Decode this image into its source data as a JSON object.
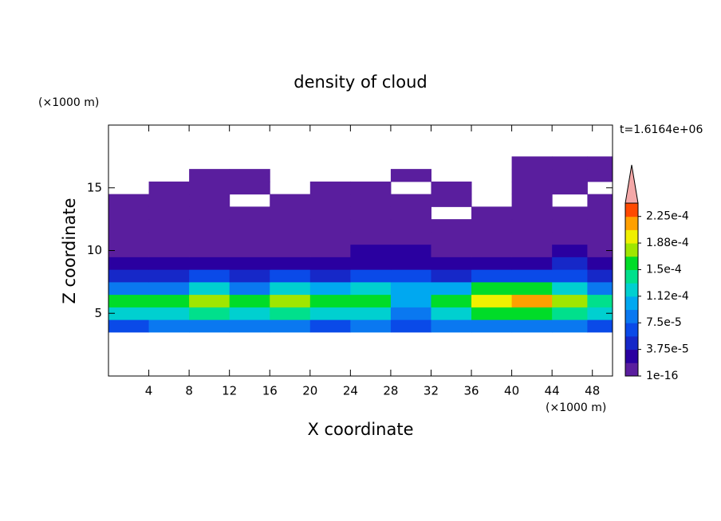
{
  "chart_data": {
    "type": "contour",
    "title": "density of cloud",
    "x_label": "X coordinate",
    "y_label": "Z coordinate",
    "x_unit": "(×1000 m)",
    "y_unit": "(×1000 m)",
    "annotation": "t=1.6164e+06",
    "xlim": [
      0,
      50
    ],
    "ylim": [
      0,
      20
    ],
    "xticks": [
      4,
      8,
      12,
      16,
      20,
      24,
      28,
      32,
      36,
      40,
      44,
      48
    ],
    "yticks": [
      5,
      10,
      15
    ],
    "x": [
      2,
      6,
      10,
      14,
      18,
      22,
      26,
      30,
      34,
      38,
      42,
      46,
      49
    ],
    "z": [
      4,
      5,
      6,
      7,
      8,
      9,
      10,
      11,
      12,
      13,
      14,
      15,
      16,
      17
    ],
    "values": [
      [
        7e-05,
        8e-05,
        8e-05,
        8e-05,
        8e-05,
        7e-05,
        8e-05,
        6e-05,
        8e-05,
        8e-05,
        8e-05,
        8e-05,
        7e-05
      ],
      [
        0.00012,
        0.00013,
        0.00014,
        0.00013,
        0.00014,
        0.00013,
        0.00012,
        9e-05,
        0.00013,
        0.00015,
        0.00016,
        0.00014,
        0.00012
      ],
      [
        0.00015,
        0.00016,
        0.00017,
        0.00016,
        0.00017,
        0.00015,
        0.00015,
        0.00011,
        0.00016,
        0.00019,
        0.00022,
        0.00017,
        0.00014
      ],
      [
        8e-05,
        9e-05,
        0.00013,
        9e-05,
        0.00012,
        0.0001,
        0.00012,
        0.0001,
        0.00011,
        0.00015,
        0.00016,
        0.00012,
        8e-05
      ],
      [
        5e-05,
        5e-05,
        6e-05,
        5e-05,
        6e-05,
        5e-05,
        6e-05,
        6e-05,
        5e-05,
        6e-05,
        6e-05,
        6e-05,
        5e-05
      ],
      [
        3e-05,
        3e-05,
        3e-05,
        2.5e-05,
        3e-05,
        3e-05,
        3.5e-05,
        3e-05,
        2.5e-05,
        3e-05,
        3e-05,
        4e-05,
        3e-05
      ],
      [
        1.5e-05,
        1.2e-05,
        1.5e-05,
        1.2e-05,
        1.5e-05,
        1.2e-05,
        2e-05,
        2e-05,
        1.5e-05,
        1.5e-05,
        1.5e-05,
        2e-05,
        1.5e-05
      ],
      [
        1e-05,
        1e-05,
        1e-05,
        1e-05,
        1e-05,
        1e-05,
        1e-05,
        1e-05,
        1e-05,
        1e-05,
        1e-05,
        1e-05,
        1e-05
      ],
      [
        1e-05,
        1e-05,
        1e-05,
        1e-05,
        1e-05,
        1e-05,
        1e-05,
        1e-05,
        1e-05,
        1e-05,
        1e-05,
        1e-05,
        1e-05
      ],
      [
        1e-05,
        1e-05,
        1e-05,
        1e-05,
        1e-05,
        1e-05,
        1e-05,
        1e-05,
        0,
        1e-05,
        1e-05,
        1e-05,
        1e-05
      ],
      [
        1e-05,
        1e-05,
        1e-05,
        0,
        1e-05,
        1e-05,
        1e-05,
        1e-05,
        1e-05,
        0,
        1e-05,
        0,
        1e-05
      ],
      [
        0,
        1e-05,
        1e-05,
        1e-05,
        0,
        1e-05,
        1e-05,
        0,
        1e-05,
        0,
        1e-05,
        1e-05,
        0
      ],
      [
        0,
        0,
        1e-05,
        1e-05,
        0,
        0,
        0,
        1e-05,
        0,
        0,
        1e-05,
        1e-05,
        1e-05
      ],
      [
        0,
        0,
        0,
        0,
        0,
        0,
        0,
        0,
        0,
        0,
        1e-05,
        1e-05,
        1e-05
      ]
    ],
    "levels": [
      1e-16,
      1.875e-05,
      3.75e-05,
      5.625e-05,
      7.5e-05,
      9.375e-05,
      0.0001125,
      0.00013125,
      0.00015,
      0.00016875,
      0.0001875,
      0.00020625,
      0.000225,
      0.00024375
    ],
    "colors": [
      "#5a1e9e",
      "#2a00a0",
      "#1628c8",
      "#0a4ae8",
      "#0a78f0",
      "#00a8f0",
      "#00d0d0",
      "#00e08c",
      "#00dc28",
      "#a0e600",
      "#f0f000",
      "#ffa000",
      "#ff4a00"
    ],
    "extend_color": "#f4a8a8",
    "colorbar_ticks": [
      {
        "value": 1e-16,
        "label": "1e-16"
      },
      {
        "value": 3.75e-05,
        "label": "3.75e-5"
      },
      {
        "value": 7.5e-05,
        "label": "7.5e-5"
      },
      {
        "value": 0.0001125,
        "label": "1.12e-4"
      },
      {
        "value": 0.00015,
        "label": "1.5e-4"
      },
      {
        "value": 0.0001875,
        "label": "1.88e-4"
      },
      {
        "value": 0.000225,
        "label": "2.25e-4"
      }
    ]
  }
}
